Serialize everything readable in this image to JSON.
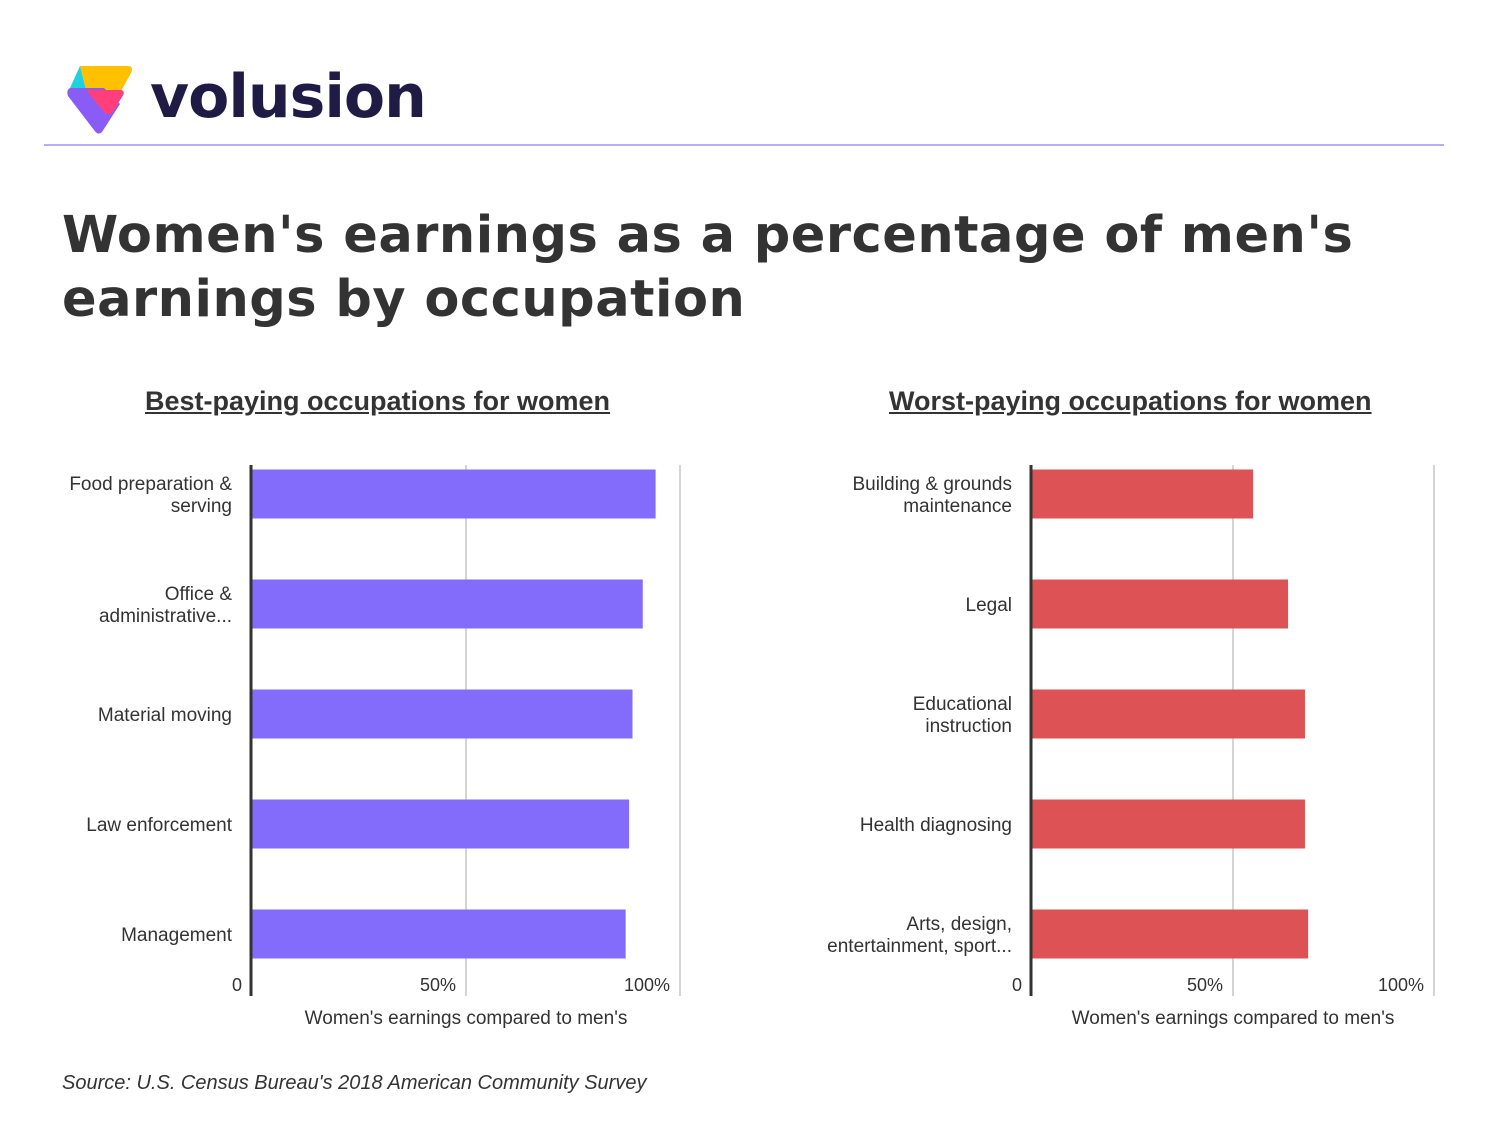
{
  "brand": {
    "name": "volusion"
  },
  "title": "Women's earnings as a percentage of men's earnings by occupation",
  "source": "Source: U.S. Census Bureau's 2018 American Community Survey",
  "colors": {
    "best": "#836bfb",
    "worst": "#dd5254"
  },
  "chart_data": [
    {
      "type": "bar",
      "orientation": "horizontal",
      "title": "Best-paying occupations for women",
      "xlabel": "Women's earnings compared to men's",
      "categories": [
        [
          "Food preparation &",
          "serving"
        ],
        [
          "Office &",
          "administrative..."
        ],
        [
          "Material moving"
        ],
        [
          "Law enforcement"
        ],
        [
          "Management"
        ]
      ],
      "values": [
        94.3,
        91.3,
        88.9,
        88.1,
        87.3
      ],
      "xlim": [
        0,
        100
      ],
      "ticks": [
        {
          "v": 0,
          "label": "0"
        },
        {
          "v": 50,
          "label": "50%"
        },
        {
          "v": 100,
          "label": "100%"
        }
      ],
      "grid": true
    },
    {
      "type": "bar",
      "orientation": "horizontal",
      "title": "Worst-paying occupations for women",
      "xlabel": "Women's earnings compared to men's",
      "categories": [
        [
          "Building & grounds",
          "maintenance"
        ],
        [
          "Legal"
        ],
        [
          "Educational",
          "instruction"
        ],
        [
          "Health diagnosing"
        ],
        [
          "Arts, design,",
          "entertainment, sport..."
        ]
      ],
      "values": [
        55.0,
        63.7,
        67.9,
        67.9,
        68.7
      ],
      "xlim": [
        0,
        100
      ],
      "ticks": [
        {
          "v": 0,
          "label": "0"
        },
        {
          "v": 50,
          "label": "50%"
        },
        {
          "v": 100,
          "label": "100%"
        }
      ],
      "grid": true
    }
  ]
}
